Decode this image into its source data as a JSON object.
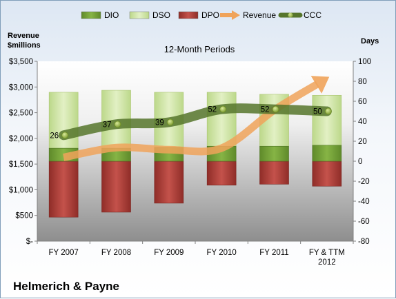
{
  "chart_data": {
    "type": "bar",
    "title": "12-Month Periods",
    "company": "Helmerich & Payne",
    "categories": [
      [
        "FY 2007"
      ],
      [
        "FY 2008"
      ],
      [
        "FY 2009"
      ],
      [
        "FY 2010"
      ],
      [
        "FY 2011"
      ],
      [
        "FY & TTM",
        "2012"
      ]
    ],
    "left_axis": {
      "title_lines": [
        "Revenue",
        "$millions"
      ],
      "range": [
        0,
        3500
      ],
      "ticks": [
        0,
        500,
        1000,
        1500,
        2000,
        2500,
        3000,
        3500
      ],
      "tick_labels": [
        "$-",
        "$500",
        "$1,000",
        "$1,500",
        "$2,000",
        "$2,500",
        "$3,000",
        "$3,500"
      ]
    },
    "right_axis": {
      "title": "Days",
      "range": [
        -80,
        100
      ],
      "ticks": [
        -80,
        -60,
        -40,
        -20,
        0,
        20,
        40,
        60,
        80,
        100
      ],
      "tick_labels": [
        "-80",
        "-60",
        "-40",
        "-20",
        "0",
        "20",
        "40",
        "60",
        "80",
        "100"
      ]
    },
    "series": [
      {
        "name": "DIO",
        "type": "bar",
        "axis": "days",
        "color": "#76a33a",
        "values": [
          13,
          13,
          14,
          15,
          15,
          16
        ]
      },
      {
        "name": "DSO",
        "type": "bar",
        "axis": "days",
        "color": "#d3e8a6",
        "values": [
          56,
          58,
          55,
          54,
          52,
          50
        ]
      },
      {
        "name": "DPO",
        "type": "bar",
        "axis": "days",
        "color": "#b3443e",
        "values": [
          -56,
          -51,
          -42,
          -24,
          -23,
          -25
        ]
      },
      {
        "name": "Revenue",
        "type": "line",
        "axis": "revenue",
        "color": "#f0a35a",
        "values": [
          1630,
          1820,
          1780,
          1810,
          2550,
          3170
        ]
      },
      {
        "name": "CCC",
        "type": "line",
        "axis": "days",
        "color": "#56752c",
        "values": [
          26,
          37,
          39,
          52,
          52,
          50
        ],
        "labels": [
          "26",
          "37",
          "39",
          "52",
          "52",
          "50"
        ]
      }
    ],
    "grid": false,
    "legend_position": "top"
  }
}
